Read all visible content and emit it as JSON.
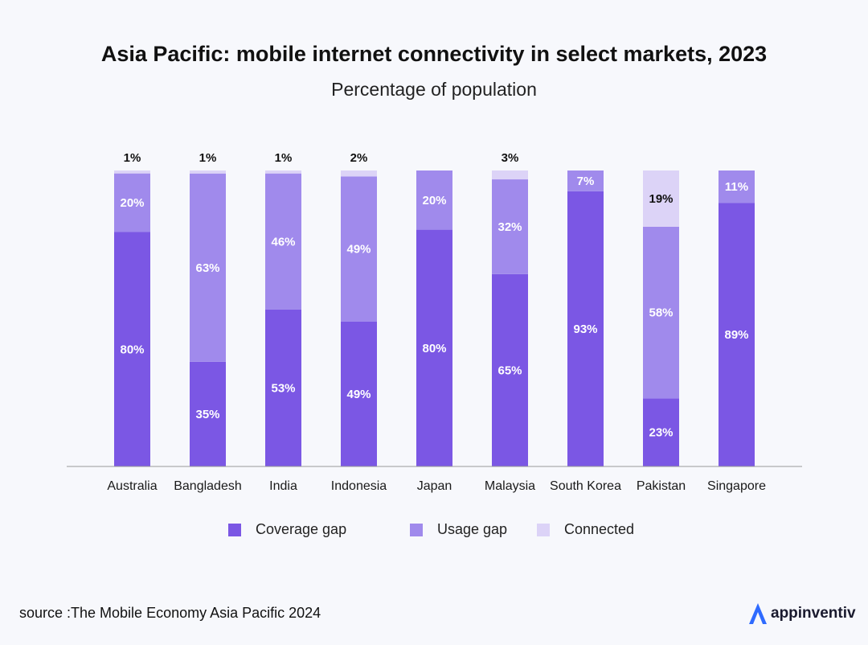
{
  "header": {
    "title": "Asia Pacific: mobile internet connectivity in select markets, 2023",
    "subtitle": "Percentage of population"
  },
  "footer": {
    "source": "source :The Mobile Economy Asia Pacific 2024",
    "brand": "appinventiv"
  },
  "colors": {
    "coverage_gap": "#7b57e4",
    "usage_gap": "#a08aec",
    "connected": "#dcd3f7",
    "axis": "#9a9a9a",
    "brand_icon": "#2f6bff"
  },
  "chart_data": {
    "type": "bar",
    "stacked": true,
    "title": "Asia Pacific: mobile internet connectivity in select markets, 2023",
    "subtitle": "Percentage of population",
    "ylim": [
      0,
      100
    ],
    "grid": false,
    "legend_position": "bottom",
    "categories": [
      "Australia",
      "Bangladesh",
      "India",
      "Indonesia",
      "Japan",
      "Malaysia",
      "South Korea",
      "Pakistan",
      "Singapore"
    ],
    "series": [
      {
        "name": "Coverage gap",
        "values": [
          80,
          35,
          53,
          49,
          80,
          65,
          93,
          23,
          89
        ],
        "labels": [
          "80%",
          "35%",
          "53%",
          "49%",
          "80%",
          "65%",
          "93%",
          "23%",
          "89%"
        ]
      },
      {
        "name": "Usage gap",
        "values": [
          20,
          63,
          46,
          49,
          20,
          32,
          7,
          58,
          11
        ],
        "labels": [
          "20%",
          "63%",
          "46%",
          "49%",
          "20%",
          "32%",
          "7%",
          "58%",
          "11%"
        ]
      },
      {
        "name": "Connected",
        "values": [
          1,
          1,
          1,
          2,
          0,
          3,
          0,
          19,
          0
        ],
        "labels": [
          "1%",
          "1%",
          "1%",
          "2%",
          "",
          "3%",
          "",
          "19%",
          ""
        ]
      }
    ]
  }
}
